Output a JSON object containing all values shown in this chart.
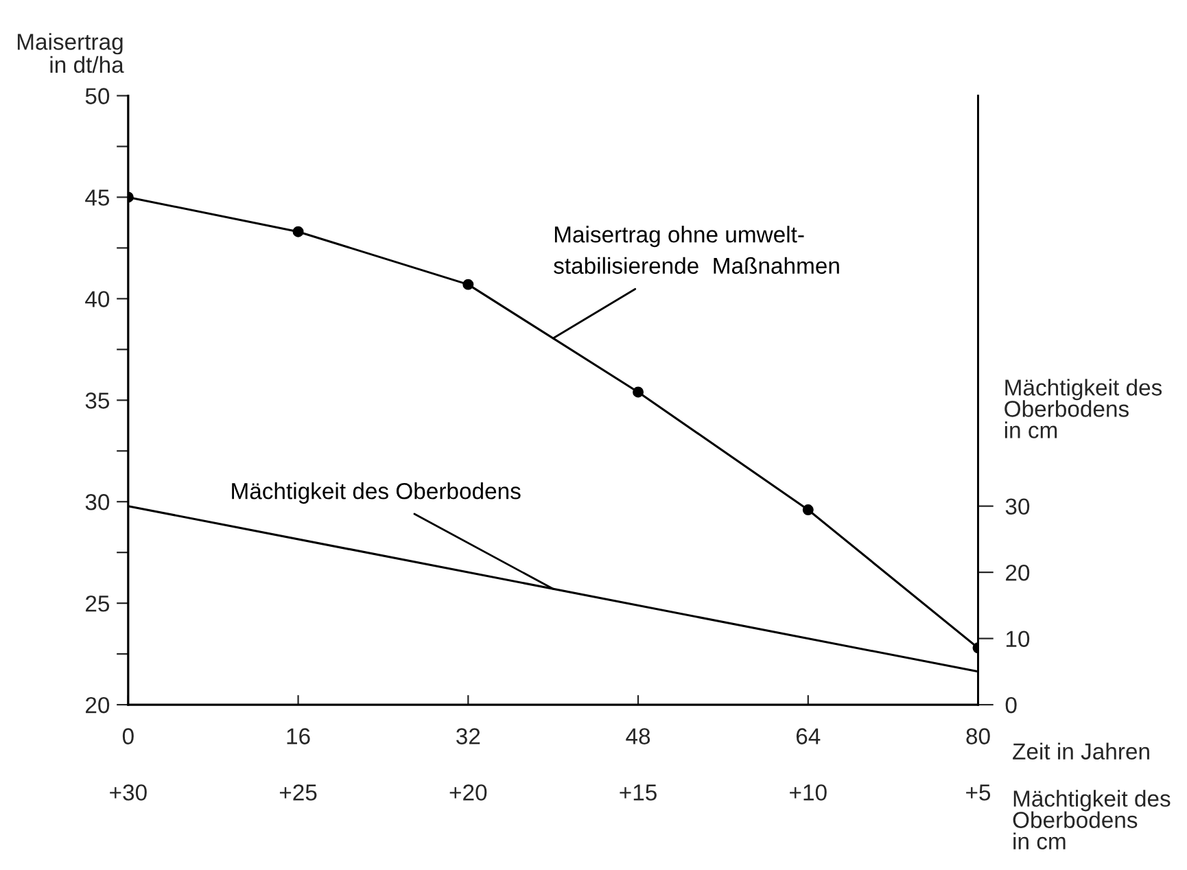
{
  "chart_data": {
    "type": "line",
    "ylabel": "Maisertrag\nin dt/ha",
    "y2label": "Mächtigkeit des\nOberbodens\nin cm",
    "xlabel": "Zeit in Jahren",
    "x2label": "Mächtigkeit des\nOberbodens\nin cm",
    "x": [
      0,
      16,
      32,
      48,
      64,
      80
    ],
    "xlim": [
      0,
      80
    ],
    "xticks": [
      0,
      16,
      32,
      48,
      64,
      80
    ],
    "x2lim": [
      30,
      5
    ],
    "x2ticks": [
      {
        "value": 30,
        "label": "+30"
      },
      {
        "value": 25,
        "label": "+25"
      },
      {
        "value": 20,
        "label": "+20"
      },
      {
        "value": 15,
        "label": "+15"
      },
      {
        "value": 10,
        "label": "+10"
      },
      {
        "value": 5,
        "label": "+5"
      }
    ],
    "ylim": [
      20,
      50
    ],
    "yticks": [
      20,
      {
        "value": 22.5,
        "label": null
      },
      25,
      {
        "value": 27.5,
        "label": null
      },
      30,
      {
        "value": 32.5,
        "label": null
      },
      35,
      {
        "value": 37.5,
        "label": null
      },
      40,
      {
        "value": 42.5,
        "label": null
      },
      45,
      {
        "value": 47.5,
        "label": null
      },
      50
    ],
    "y2lim": [
      0,
      92
    ],
    "y2ticks": [
      0,
      10,
      20,
      30
    ],
    "grid": false,
    "legend": false,
    "series": [
      {
        "name": "Maisertrag ohne umwelt-\nstabilisierende  Maßnahmen",
        "color": "#000000",
        "marker": "circle",
        "values": [
          45,
          43.3,
          40.7,
          35.4,
          29.6,
          22.8
        ]
      },
      {
        "name": "Mächtigkeit des Oberbodens",
        "color": "#000000",
        "marker": "none",
        "axis": "y2",
        "x": [
          0,
          80
        ],
        "values": [
          30,
          5
        ]
      }
    ]
  }
}
